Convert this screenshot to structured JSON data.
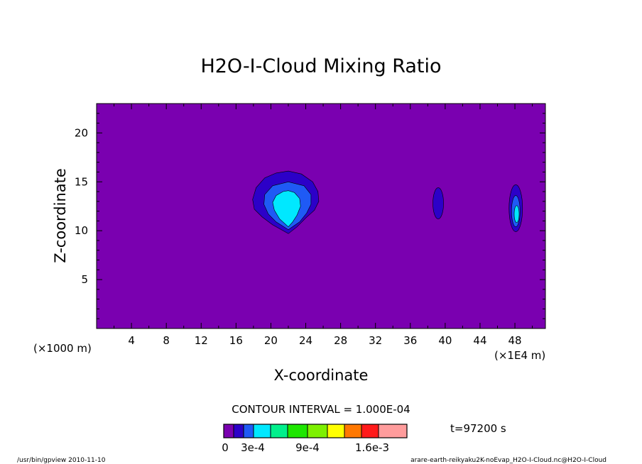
{
  "chart_data": {
    "type": "contour",
    "title": "H2O-I-Cloud Mixing Ratio",
    "xlabel": "X-coordinate",
    "ylabel": "Z-coordinate",
    "x_unit_label": "(×1000 m)",
    "x_unit_label_right": "(×1E4 m)",
    "xlim": [
      0,
      51.5
    ],
    "ylim": [
      0,
      23
    ],
    "xticks": [
      4,
      8,
      12,
      16,
      20,
      24,
      28,
      32,
      36,
      40,
      44,
      48
    ],
    "yticks": [
      5,
      10,
      15,
      20
    ],
    "contour_interval_text": "CONTOUR INTERVAL = 1.000E-04",
    "time_text": "t=97200 s",
    "colorbar": {
      "colors": [
        "#7a00b0",
        "#2c00c8",
        "#1f5af5",
        "#00e8ff",
        "#00f08c",
        "#1ee600",
        "#7df000",
        "#ffff00",
        "#ff7800",
        "#ff1a1a",
        "#ff9c9c"
      ],
      "labels": [
        "0",
        "3e-4",
        "9e-4",
        "1.6e-3"
      ]
    },
    "features": [
      {
        "name": "main-cloud",
        "center_x": 22,
        "center_z": 13.3,
        "levels": 3,
        "peak_estimate": 0.0003
      },
      {
        "name": "small-cloud-40",
        "center_x": 39.2,
        "center_z": 12.8,
        "levels": 1
      },
      {
        "name": "small-cloud-48",
        "center_x": 48.1,
        "center_z": 12.3,
        "levels": 3
      }
    ]
  },
  "footer": {
    "left": "/usr/bin/gpview  2010-11-10",
    "right": "arare-earth-reikyaku2K-noEvap_H2O-I-Cloud.nc@H2O-I-Cloud"
  }
}
